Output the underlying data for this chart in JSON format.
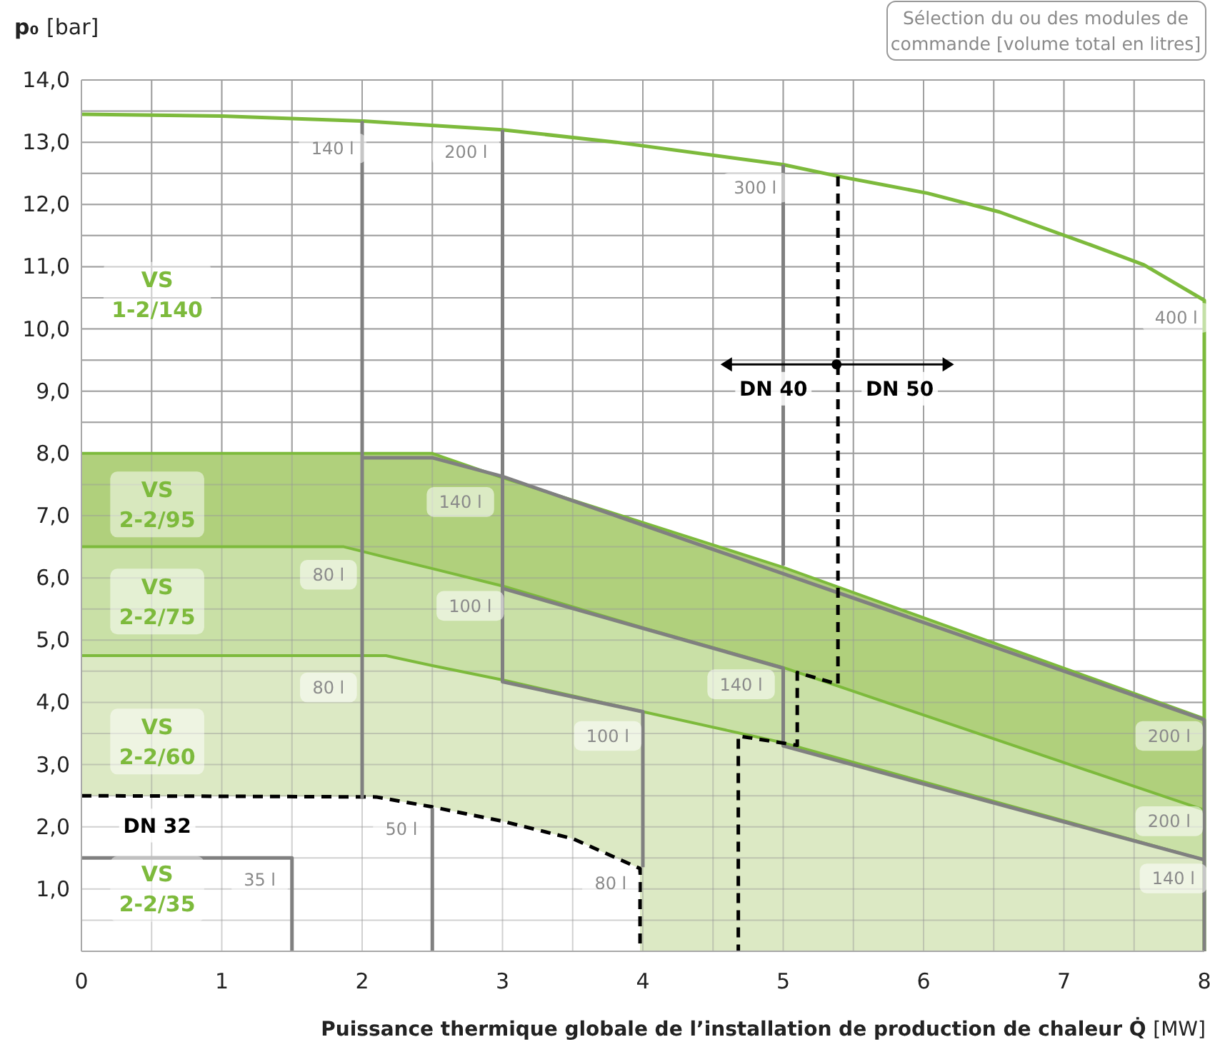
{
  "chart_data": {
    "type": "area",
    "xlabel": "Puissance thermique globale de l’installation de production de chaleur Q̇ [MW]",
    "ylabel": "p₀ [bar]",
    "xlim": [
      0,
      8
    ],
    "ylim": [
      0,
      14
    ],
    "xticks": [
      0,
      {
        "value": 0.5,
        "label": null
      },
      1,
      {
        "value": 1.5,
        "label": null
      },
      2,
      {
        "value": 2.5,
        "label": null
      },
      3,
      {
        "value": 3.5,
        "label": null
      },
      4,
      {
        "value": 4.5,
        "label": null
      },
      5,
      {
        "value": 5.5,
        "label": null
      },
      6,
      {
        "value": 6.5,
        "label": null
      },
      7,
      {
        "value": 7.5,
        "label": null
      },
      8
    ],
    "yticks": [
      {
        "value": 0,
        "label": null
      },
      {
        "value": 0.5,
        "label": null
      },
      {
        "value": 1,
        "label": "1,0"
      },
      {
        "value": 1.5,
        "label": null
      },
      {
        "value": 2,
        "label": "2,0"
      },
      {
        "value": 2.5,
        "label": null
      },
      {
        "value": 3,
        "label": "3,0"
      },
      {
        "value": 3.5,
        "label": null
      },
      {
        "value": 4,
        "label": "4,0"
      },
      {
        "value": 4.5,
        "label": null
      },
      {
        "value": 5,
        "label": "5,0"
      },
      {
        "value": 5.5,
        "label": null
      },
      {
        "value": 6,
        "label": "6,0"
      },
      {
        "value": 6.5,
        "label": null
      },
      {
        "value": 7,
        "label": "7,0"
      },
      {
        "value": 7.5,
        "label": null
      },
      {
        "value": 8,
        "label": "8,0"
      },
      {
        "value": 8.5,
        "label": null
      },
      {
        "value": 9,
        "label": "9,0"
      },
      {
        "value": 9.5,
        "label": null
      },
      {
        "value": 10,
        "label": "10,0"
      },
      {
        "value": 10.5,
        "label": null
      },
      {
        "value": 11,
        "label": "11,0"
      },
      {
        "value": 11.5,
        "label": null
      },
      {
        "value": 12,
        "label": "12,0"
      },
      {
        "value": 12.5,
        "label": null
      },
      {
        "value": 13,
        "label": "13,0"
      },
      {
        "value": 13.5,
        "label": null
      },
      {
        "value": 14,
        "label": "14,0"
      }
    ],
    "grid": true,
    "marker": "none",
    "line_style": "solid",
    "series": [
      {
        "color": "#b0d07c",
        "x": [
          0,
          1.87,
          2.5,
          3,
          5,
          8
        ],
        "values": [
          8.0,
          8.0,
          8.0,
          7.61,
          6.17,
          3.74
        ]
      },
      {
        "color": "#c9e0a6",
        "x": [
          0,
          1.87,
          2.17,
          2.5,
          3,
          4,
          5,
          8
        ],
        "values": [
          6.5,
          6.5,
          6.33,
          6.15,
          5.87,
          5.2,
          4.56,
          2.27
        ]
      },
      {
        "color": "#dce9c4",
        "x": [
          0,
          2.17,
          2.5,
          3,
          4,
          5,
          8
        ],
        "values": [
          4.75,
          4.75,
          4.59,
          4.36,
          3.85,
          3.35,
          1.47
        ]
      },
      {
        "color": "#ffffff",
        "line_style": "dashed",
        "x": [
          0,
          2.1,
          2.5,
          3,
          3.5,
          3.8,
          3.98,
          3.98
        ],
        "values": [
          2.5,
          2.48,
          2.32,
          2.09,
          1.81,
          1.51,
          1.33,
          0
        ]
      },
      {
        "type": "line",
        "color": "#7dba3c",
        "x": [
          0,
          1,
          2,
          3,
          3.81,
          5,
          5.4,
          6.03,
          6.54,
          7.19,
          7.57,
          8,
          8
        ],
        "values": [
          13.45,
          13.42,
          13.34,
          13.2,
          13.0,
          12.64,
          12.45,
          12.18,
          11.88,
          11.35,
          11.03,
          10.46,
          0
        ]
      },
      {
        "type": "line",
        "color": "#808080",
        "x": [
          2,
          2
        ],
        "values": [
          13.34,
          2.45
        ]
      },
      {
        "type": "line",
        "color": "#808080",
        "x": [
          2,
          2.5,
          3,
          8,
          8
        ],
        "values": [
          7.93,
          7.93,
          7.63,
          3.72,
          0
        ]
      },
      {
        "type": "line",
        "color": "#808080",
        "x": [
          3,
          3,
          4,
          4
        ],
        "values": [
          13.2,
          4.33,
          3.85,
          1.35
        ]
      },
      {
        "type": "line",
        "color": "#808080",
        "x": [
          3,
          5,
          5,
          8
        ],
        "values": [
          5.83,
          4.55,
          3.3,
          1.47
        ]
      },
      {
        "type": "line",
        "color": "#808080",
        "x": [
          5,
          5
        ],
        "values": [
          12.64,
          6.2
        ]
      },
      {
        "type": "line",
        "color": "#808080",
        "x": [
          2.5,
          2.5
        ],
        "values": [
          2.3,
          0
        ]
      },
      {
        "type": "line",
        "color": "#808080",
        "x": [
          0,
          1.5,
          1.5
        ],
        "values": [
          1.5,
          1.5,
          0
        ]
      },
      {
        "type": "line",
        "color": "#000000",
        "line_style": "dashed",
        "x": [
          5.39,
          5.39,
          5.1,
          5.1,
          4.68,
          4.68
        ],
        "values": [
          12.45,
          4.29,
          4.48,
          3.31,
          3.46,
          0
        ]
      }
    ],
    "annotations": [
      "Sélection du ou des modules de commande [volume total en litres]",
      "VS\n1-2/140",
      "VS\n2-2/95",
      "VS\n2-2/75",
      "VS\n2-2/60",
      "VS\n2-2/35",
      "DN 32",
      "DN 40",
      "DN 50",
      "140 l",
      "200 l",
      "300 l",
      "400 l",
      "140 l",
      "80 l",
      "100 l",
      "80 l",
      "100 l",
      "140 l",
      "200 l",
      "200 l",
      "140 l",
      "50 l",
      "35 l",
      "80 l"
    ]
  }
}
